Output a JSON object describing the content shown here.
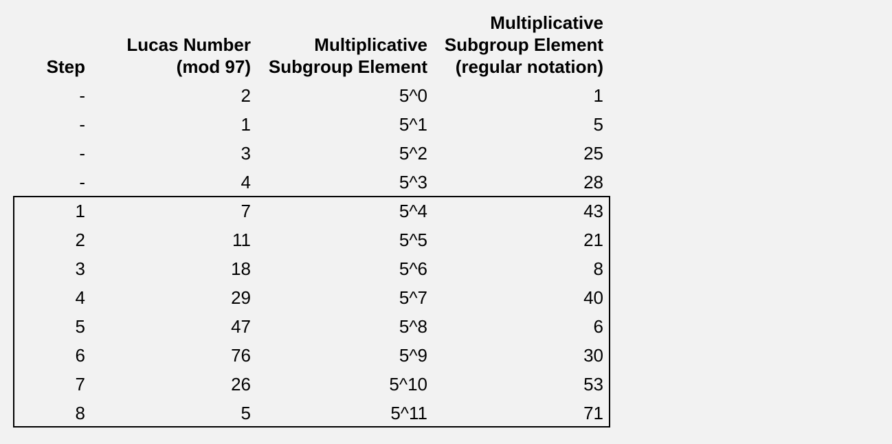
{
  "colors": {
    "background": "#f2f2f2",
    "text": "#000000",
    "highlight_border": "#000000"
  },
  "chart_data": {
    "type": "table",
    "columns": [
      "Step",
      "Lucas Number\n(mod 97)",
      "Multiplicative\nSubgroup Element",
      "Multiplicative\nSubgroup Element\n(regular notation)"
    ],
    "rows": [
      [
        "-",
        "2",
        "5^0",
        "1"
      ],
      [
        "-",
        "1",
        "5^1",
        "5"
      ],
      [
        "-",
        "3",
        "5^2",
        "25"
      ],
      [
        "-",
        "4",
        "5^3",
        "28"
      ],
      [
        "1",
        "7",
        "5^4",
        "43"
      ],
      [
        "2",
        "11",
        "5^5",
        "21"
      ],
      [
        "3",
        "18",
        "5^6",
        "8"
      ],
      [
        "4",
        "29",
        "5^7",
        "40"
      ],
      [
        "5",
        "47",
        "5^8",
        "6"
      ],
      [
        "6",
        "76",
        "5^9",
        "30"
      ],
      [
        "7",
        "26",
        "5^10",
        "53"
      ],
      [
        "8",
        "5",
        "5^11",
        "71"
      ]
    ],
    "highlight": {
      "description": "black rectangle enclosing the rows with steps 1 through 8",
      "first_row_index": 4,
      "last_row_index": 11
    },
    "layout": {
      "column_alignment": [
        "right",
        "right",
        "right",
        "right"
      ],
      "grid": "off",
      "header_style": "bold, bottom-aligned, multi-line"
    }
  }
}
